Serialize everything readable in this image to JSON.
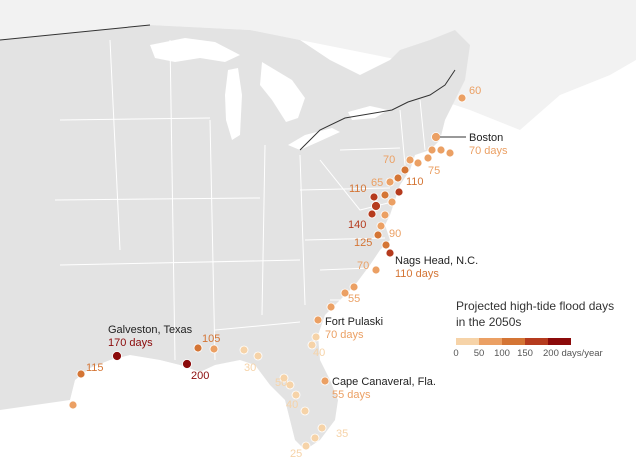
{
  "legend": {
    "title_line1": "Projected high-tide flood days",
    "title_line2": "in the 2050s",
    "ticks": [
      "0",
      "50",
      "100",
      "150",
      "200 days/year"
    ],
    "colors": [
      "#f6d3a8",
      "#eba064",
      "#d47535",
      "#b53b1e",
      "#8b0a0a"
    ]
  },
  "callouts": {
    "boston": {
      "name": "Boston",
      "value": "70 days"
    },
    "nags_head": {
      "name": "Nags Head, N.C.",
      "value": "110 days"
    },
    "fort_pulaski": {
      "name": "Fort Pulaski",
      "value": "70 days"
    },
    "cape_canaveral": {
      "name": "Cape Canaveral, Fla.",
      "value": "55 days"
    },
    "galveston": {
      "name": "Galveston, Texas",
      "value": "170 days"
    }
  },
  "value_labels": [
    "60",
    "75",
    "70",
    "110",
    "65",
    "110",
    "140",
    "90",
    "125",
    "70",
    "55",
    "105",
    "200",
    "115",
    "30",
    "40",
    "50",
    "40",
    "35",
    "25"
  ],
  "stations": [
    {
      "value": 60
    },
    {
      "value": 70
    },
    {
      "value": 75
    },
    {
      "value": 70
    },
    {
      "value": 70
    },
    {
      "value": 65
    },
    {
      "value": 110
    },
    {
      "value": 120
    },
    {
      "value": 140
    },
    {
      "value": 90
    },
    {
      "value": 125
    },
    {
      "value": 110
    },
    {
      "value": 70
    },
    {
      "value": 55
    },
    {
      "value": 70
    },
    {
      "value": 40
    },
    {
      "value": 55
    },
    {
      "value": 35
    },
    {
      "value": 25
    },
    {
      "value": 30
    },
    {
      "value": 50
    },
    {
      "value": 105
    },
    {
      "value": 200
    },
    {
      "value": 170
    },
    {
      "value": 115
    },
    {
      "value": 80
    }
  ]
}
